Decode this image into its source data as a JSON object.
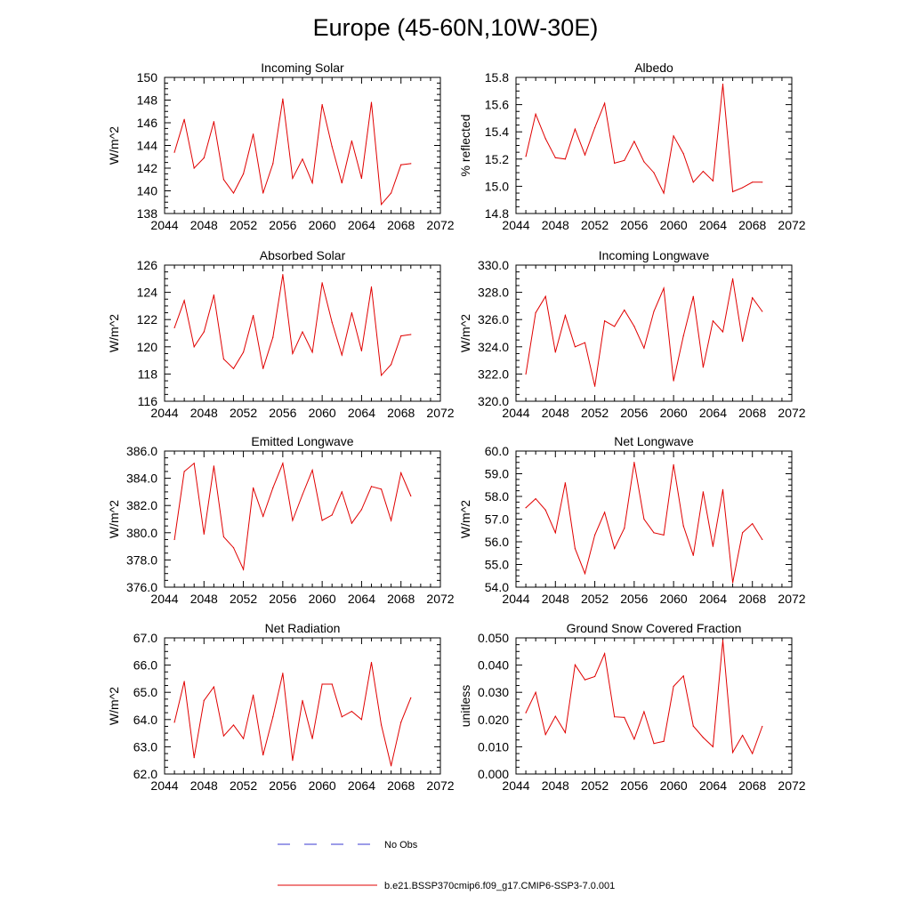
{
  "figure": {
    "title": "Europe (45-60N,10W-30E)",
    "legend": [
      {
        "label": "No Obs",
        "color": "#3a3ad0",
        "style": "dashed"
      },
      {
        "label": "b.e21.BSSP370cmip6.f09_g17.CMIP6-SSP3-7.0.001",
        "color": "#e00000",
        "style": "solid"
      }
    ],
    "line_color": "#e00000"
  },
  "chart_data": [
    {
      "type": "line",
      "title": "Incoming Solar",
      "ylabel": "W/m^2",
      "xlabel": "",
      "xlim": [
        2044,
        2072
      ],
      "ylim": [
        138,
        150
      ],
      "xticks": [
        2044,
        2048,
        2052,
        2056,
        2060,
        2064,
        2068,
        2072
      ],
      "yticks": [
        138,
        140,
        142,
        144,
        146,
        148,
        150
      ],
      "ytick_decimals": 0,
      "series": [
        {
          "x": [
            2045,
            2046,
            2047,
            2048,
            2049,
            2050,
            2051,
            2052,
            2053,
            2054,
            2055,
            2056,
            2057,
            2058,
            2059,
            2060,
            2061,
            2062,
            2063,
            2064,
            2065,
            2066,
            2067,
            2068,
            2069
          ],
          "values": [
            143.4,
            146.3,
            142.0,
            142.9,
            146.1,
            141.0,
            139.8,
            141.5,
            145.0,
            139.8,
            142.4,
            148.1,
            141.1,
            142.8,
            140.7,
            147.6,
            143.9,
            140.7,
            144.4,
            141.1,
            147.8,
            138.8,
            139.8,
            142.3,
            142.4
          ]
        }
      ]
    },
    {
      "type": "line",
      "title": "Albedo",
      "ylabel": "% reflected",
      "xlabel": "",
      "xlim": [
        2044,
        2072
      ],
      "ylim": [
        14.8,
        15.8
      ],
      "xticks": [
        2044,
        2048,
        2052,
        2056,
        2060,
        2064,
        2068,
        2072
      ],
      "yticks": [
        14.8,
        15.0,
        15.2,
        15.4,
        15.6,
        15.8
      ],
      "ytick_decimals": 1,
      "series": [
        {
          "x": [
            2045,
            2046,
            2047,
            2048,
            2049,
            2050,
            2051,
            2052,
            2053,
            2054,
            2055,
            2056,
            2057,
            2058,
            2059,
            2060,
            2061,
            2062,
            2063,
            2064,
            2065,
            2066,
            2067,
            2068,
            2069
          ],
          "values": [
            15.22,
            15.53,
            15.35,
            15.21,
            15.2,
            15.42,
            15.23,
            15.43,
            15.61,
            15.17,
            15.19,
            15.33,
            15.18,
            15.1,
            14.95,
            15.37,
            15.24,
            15.03,
            15.11,
            15.04,
            15.75,
            14.96,
            14.99,
            15.03,
            15.03
          ]
        }
      ]
    },
    {
      "type": "line",
      "title": "Absorbed Solar",
      "ylabel": "W/m^2",
      "xlabel": "",
      "xlim": [
        2044,
        2072
      ],
      "ylim": [
        116,
        126
      ],
      "xticks": [
        2044,
        2048,
        2052,
        2056,
        2060,
        2064,
        2068,
        2072
      ],
      "yticks": [
        116,
        118,
        120,
        122,
        124,
        126
      ],
      "ytick_decimals": 0,
      "series": [
        {
          "x": [
            2045,
            2046,
            2047,
            2048,
            2049,
            2050,
            2051,
            2052,
            2053,
            2054,
            2055,
            2056,
            2057,
            2058,
            2059,
            2060,
            2061,
            2062,
            2063,
            2064,
            2065,
            2066,
            2067,
            2068,
            2069
          ],
          "values": [
            121.4,
            123.4,
            120.0,
            121.1,
            123.8,
            119.1,
            118.4,
            119.6,
            122.3,
            118.4,
            120.7,
            125.3,
            119.5,
            121.1,
            119.6,
            124.7,
            121.8,
            119.4,
            122.5,
            119.7,
            124.4,
            117.9,
            118.7,
            120.8,
            120.9
          ]
        }
      ]
    },
    {
      "type": "line",
      "title": "Incoming Longwave",
      "ylabel": "W/m^2",
      "xlabel": "",
      "xlim": [
        2044,
        2072
      ],
      "ylim": [
        320,
        330
      ],
      "xticks": [
        2044,
        2048,
        2052,
        2056,
        2060,
        2064,
        2068,
        2072
      ],
      "yticks": [
        320,
        322,
        324,
        326,
        328,
        330
      ],
      "ytick_decimals": 1,
      "series": [
        {
          "x": [
            2045,
            2046,
            2047,
            2048,
            2049,
            2050,
            2051,
            2052,
            2053,
            2054,
            2055,
            2056,
            2057,
            2058,
            2059,
            2060,
            2061,
            2062,
            2063,
            2064,
            2065,
            2066,
            2067,
            2068,
            2069
          ],
          "values": [
            322.0,
            326.5,
            327.7,
            323.6,
            326.3,
            324.0,
            324.3,
            321.1,
            325.9,
            325.5,
            326.7,
            325.5,
            323.9,
            326.6,
            328.3,
            321.5,
            324.8,
            327.7,
            322.5,
            325.9,
            325.1,
            329.0,
            324.4,
            327.6,
            326.6
          ]
        }
      ]
    },
    {
      "type": "line",
      "title": "Emitted Longwave",
      "ylabel": "W/m^2",
      "xlabel": "",
      "xlim": [
        2044,
        2072
      ],
      "ylim": [
        376,
        386
      ],
      "xticks": [
        2044,
        2048,
        2052,
        2056,
        2060,
        2064,
        2068,
        2072
      ],
      "yticks": [
        376,
        378,
        380,
        382,
        384,
        386
      ],
      "ytick_decimals": 1,
      "series": [
        {
          "x": [
            2045,
            2046,
            2047,
            2048,
            2049,
            2050,
            2051,
            2052,
            2053,
            2054,
            2055,
            2056,
            2057,
            2058,
            2059,
            2060,
            2061,
            2062,
            2063,
            2064,
            2065,
            2066,
            2067,
            2068,
            2069
          ],
          "values": [
            379.5,
            384.5,
            385.1,
            379.9,
            384.9,
            379.7,
            378.9,
            377.3,
            383.3,
            381.2,
            383.3,
            385.1,
            380.9,
            382.8,
            384.6,
            380.9,
            381.3,
            383.0,
            380.7,
            381.7,
            383.4,
            383.2,
            380.9,
            384.4,
            382.7
          ]
        }
      ]
    },
    {
      "type": "line",
      "title": "Net Longwave",
      "ylabel": "W/m^2",
      "xlabel": "",
      "xlim": [
        2044,
        2072
      ],
      "ylim": [
        54,
        60
      ],
      "xticks": [
        2044,
        2048,
        2052,
        2056,
        2060,
        2064,
        2068,
        2072
      ],
      "yticks": [
        54,
        55,
        56,
        57,
        58,
        59,
        60
      ],
      "ytick_decimals": 1,
      "series": [
        {
          "x": [
            2045,
            2046,
            2047,
            2048,
            2049,
            2050,
            2051,
            2052,
            2053,
            2054,
            2055,
            2056,
            2057,
            2058,
            2059,
            2060,
            2061,
            2062,
            2063,
            2064,
            2065,
            2066,
            2067,
            2068,
            2069
          ],
          "values": [
            57.5,
            57.9,
            57.4,
            56.4,
            58.6,
            55.7,
            54.6,
            56.3,
            57.3,
            55.7,
            56.6,
            59.5,
            57.0,
            56.4,
            56.3,
            59.4,
            56.7,
            55.4,
            58.2,
            55.8,
            58.3,
            54.2,
            56.4,
            56.8,
            56.1
          ]
        }
      ]
    },
    {
      "type": "line",
      "title": "Net Radiation",
      "ylabel": "W/m^2",
      "xlabel": "",
      "xlim": [
        2044,
        2072
      ],
      "ylim": [
        62,
        67
      ],
      "xticks": [
        2044,
        2048,
        2052,
        2056,
        2060,
        2064,
        2068,
        2072
      ],
      "yticks": [
        62,
        63,
        64,
        65,
        66,
        67
      ],
      "ytick_decimals": 1,
      "series": [
        {
          "x": [
            2045,
            2046,
            2047,
            2048,
            2049,
            2050,
            2051,
            2052,
            2053,
            2054,
            2055,
            2056,
            2057,
            2058,
            2059,
            2060,
            2061,
            2062,
            2063,
            2064,
            2065,
            2066,
            2067,
            2068,
            2069
          ],
          "values": [
            63.9,
            65.4,
            62.6,
            64.7,
            65.2,
            63.4,
            63.8,
            63.3,
            64.9,
            62.7,
            64.1,
            65.7,
            62.5,
            64.7,
            63.3,
            65.3,
            65.3,
            64.1,
            64.3,
            64.0,
            66.1,
            63.8,
            62.3,
            63.9,
            64.8
          ]
        }
      ]
    },
    {
      "type": "line",
      "title": "Ground Snow Covered Fraction",
      "ylabel": "unitless",
      "xlabel": "",
      "xlim": [
        2044,
        2072
      ],
      "ylim": [
        0,
        0.05
      ],
      "xticks": [
        2044,
        2048,
        2052,
        2056,
        2060,
        2064,
        2068,
        2072
      ],
      "yticks": [
        0,
        0.01,
        0.02,
        0.03,
        0.04,
        0.05
      ],
      "ytick_decimals": 3,
      "series": [
        {
          "x": [
            2045,
            2046,
            2047,
            2048,
            2049,
            2050,
            2051,
            2052,
            2053,
            2054,
            2055,
            2056,
            2057,
            2058,
            2059,
            2060,
            2061,
            2062,
            2063,
            2064,
            2065,
            2066,
            2067,
            2068,
            2069
          ],
          "values": [
            0.0225,
            0.03,
            0.0145,
            0.0212,
            0.0152,
            0.0401,
            0.0346,
            0.0358,
            0.0442,
            0.021,
            0.0208,
            0.0128,
            0.0229,
            0.0112,
            0.012,
            0.0322,
            0.036,
            0.0176,
            0.0134,
            0.01,
            0.0491,
            0.0079,
            0.0142,
            0.0075,
            0.0175
          ]
        }
      ]
    }
  ]
}
